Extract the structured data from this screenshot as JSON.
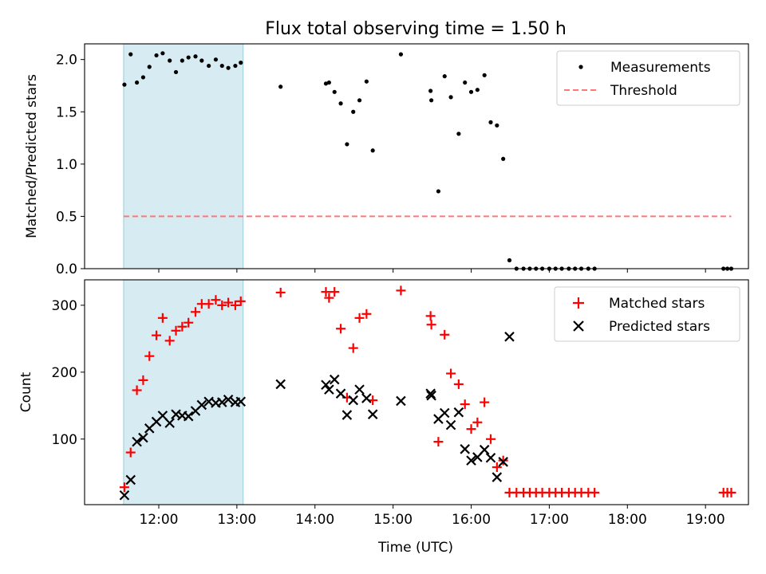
{
  "title": "Flux total observing time = 1.50 h",
  "chart_data": [
    {
      "type": "scatter",
      "ylabel": "Matched/Predicted stars",
      "xlabel": "",
      "x_unit": "hours UTC",
      "xlim": [
        11.05,
        19.55
      ],
      "ylim": [
        0,
        2.15
      ],
      "yticks": [
        0.0,
        0.5,
        1.0,
        1.5,
        2.0
      ],
      "ytick_labels": [
        "0.0",
        "0.5",
        "1.0",
        "1.5",
        "2.0"
      ],
      "shaded_span": {
        "x": [
          11.55,
          13.08
        ],
        "color": "#add8e6"
      },
      "legend_position": "upper-right",
      "series": [
        {
          "name": "Measurements",
          "marker": "dot",
          "color": "#000000",
          "points": [
            [
              11.56,
              1.76
            ],
            [
              11.64,
              2.05
            ],
            [
              11.72,
              1.78
            ],
            [
              11.8,
              1.83
            ],
            [
              11.88,
              1.93
            ],
            [
              11.97,
              2.04
            ],
            [
              12.05,
              2.06
            ],
            [
              12.14,
              1.99
            ],
            [
              12.22,
              1.88
            ],
            [
              12.3,
              1.99
            ],
            [
              12.38,
              2.02
            ],
            [
              12.47,
              2.03
            ],
            [
              12.55,
              1.99
            ],
            [
              12.64,
              1.94
            ],
            [
              12.73,
              2.0
            ],
            [
              12.81,
              1.94
            ],
            [
              12.89,
              1.92
            ],
            [
              12.98,
              1.94
            ],
            [
              13.05,
              1.97
            ],
            [
              13.56,
              1.74
            ],
            [
              14.14,
              1.77
            ],
            [
              14.18,
              1.78
            ],
            [
              14.25,
              1.69
            ],
            [
              14.33,
              1.58
            ],
            [
              14.41,
              1.19
            ],
            [
              14.49,
              1.5
            ],
            [
              14.57,
              1.61
            ],
            [
              14.66,
              1.79
            ],
            [
              14.74,
              1.13
            ],
            [
              15.1,
              2.05
            ],
            [
              15.48,
              1.7
            ],
            [
              15.49,
              1.61
            ],
            [
              15.58,
              0.74
            ],
            [
              15.66,
              1.84
            ],
            [
              15.74,
              1.64
            ],
            [
              15.84,
              1.29
            ],
            [
              15.92,
              1.78
            ],
            [
              16.0,
              1.69
            ],
            [
              16.08,
              1.71
            ],
            [
              16.17,
              1.85
            ],
            [
              16.25,
              1.4
            ],
            [
              16.33,
              1.37
            ],
            [
              16.41,
              1.05
            ],
            [
              16.49,
              0.08
            ],
            [
              16.58,
              0.0
            ],
            [
              16.67,
              0.0
            ],
            [
              16.75,
              0.0
            ],
            [
              16.83,
              0.0
            ],
            [
              16.91,
              0.0
            ],
            [
              17.0,
              0.0
            ],
            [
              17.08,
              0.0
            ],
            [
              17.16,
              0.0
            ],
            [
              17.25,
              0.0
            ],
            [
              17.33,
              0.0
            ],
            [
              17.41,
              0.0
            ],
            [
              17.5,
              0.0
            ],
            [
              17.58,
              0.0
            ],
            [
              19.23,
              0.0
            ],
            [
              19.28,
              0.0
            ],
            [
              19.33,
              0.0
            ]
          ]
        },
        {
          "name": "Threshold",
          "marker": "dashed-line",
          "color": "#ff7777",
          "points": [
            [
              11.55,
              0.5
            ],
            [
              19.33,
              0.5
            ]
          ]
        }
      ]
    },
    {
      "type": "scatter",
      "ylabel": "Count",
      "xlabel": "Time (UTC)",
      "x_unit": "hours UTC",
      "xlim": [
        11.05,
        19.55
      ],
      "ylim": [
        2,
        338
      ],
      "yticks": [
        100,
        200,
        300
      ],
      "ytick_labels": [
        "100",
        "200",
        "300"
      ],
      "xticks": [
        12,
        13,
        14,
        15,
        16,
        17,
        18,
        19
      ],
      "xtick_labels": [
        "12:00",
        "13:00",
        "14:00",
        "15:00",
        "16:00",
        "17:00",
        "18:00",
        "19:00"
      ],
      "shaded_span": {
        "x": [
          11.55,
          13.08
        ],
        "color": "#add8e6"
      },
      "legend_position": "upper-right",
      "series": [
        {
          "name": "Matched stars",
          "marker": "plus",
          "color": "#ff0000",
          "points": [
            [
              11.56,
              28
            ],
            [
              11.64,
              80
            ],
            [
              11.72,
              173
            ],
            [
              11.8,
              188
            ],
            [
              11.88,
              224
            ],
            [
              11.97,
              255
            ],
            [
              12.05,
              281
            ],
            [
              12.14,
              247
            ],
            [
              12.22,
              262
            ],
            [
              12.3,
              268
            ],
            [
              12.38,
              274
            ],
            [
              12.47,
              290
            ],
            [
              12.55,
              302
            ],
            [
              12.64,
              302
            ],
            [
              12.73,
              308
            ],
            [
              12.81,
              300
            ],
            [
              12.89,
              304
            ],
            [
              12.98,
              300
            ],
            [
              13.05,
              306
            ],
            [
              13.56,
              319
            ],
            [
              14.14,
              320
            ],
            [
              14.18,
              311
            ],
            [
              14.25,
              320
            ],
            [
              14.33,
              265
            ],
            [
              14.41,
              162
            ],
            [
              14.49,
              236
            ],
            [
              14.57,
              281
            ],
            [
              14.66,
              287
            ],
            [
              14.74,
              158
            ],
            [
              15.1,
              322
            ],
            [
              15.48,
              284
            ],
            [
              15.49,
              271
            ],
            [
              15.58,
              96
            ],
            [
              15.66,
              256
            ],
            [
              15.74,
              198
            ],
            [
              15.84,
              182
            ],
            [
              15.92,
              152
            ],
            [
              16.0,
              115
            ],
            [
              16.08,
              125
            ],
            [
              16.17,
              155
            ],
            [
              16.25,
              100
            ],
            [
              16.33,
              58
            ],
            [
              16.41,
              68
            ],
            [
              16.49,
              20
            ],
            [
              16.58,
              20
            ],
            [
              16.67,
              20
            ],
            [
              16.75,
              20
            ],
            [
              16.83,
              20
            ],
            [
              16.91,
              20
            ],
            [
              17.0,
              20
            ],
            [
              17.08,
              20
            ],
            [
              17.16,
              20
            ],
            [
              17.25,
              20
            ],
            [
              17.33,
              20
            ],
            [
              17.41,
              20
            ],
            [
              17.5,
              20
            ],
            [
              17.58,
              20
            ],
            [
              19.23,
              20
            ],
            [
              19.28,
              20
            ],
            [
              19.33,
              20
            ]
          ]
        },
        {
          "name": "Predicted stars",
          "marker": "x",
          "color": "#000000",
          "points": [
            [
              11.56,
              16
            ],
            [
              11.64,
              39
            ],
            [
              11.72,
              96
            ],
            [
              11.8,
              102
            ],
            [
              11.88,
              116
            ],
            [
              11.97,
              126
            ],
            [
              12.05,
              135
            ],
            [
              12.14,
              124
            ],
            [
              12.22,
              137
            ],
            [
              12.3,
              135
            ],
            [
              12.38,
              134
            ],
            [
              12.47,
              142
            ],
            [
              12.55,
              151
            ],
            [
              12.64,
              156
            ],
            [
              12.73,
              154
            ],
            [
              12.81,
              155
            ],
            [
              12.89,
              159
            ],
            [
              12.98,
              155
            ],
            [
              13.05,
              156
            ],
            [
              13.56,
              182
            ],
            [
              14.14,
              181
            ],
            [
              14.18,
              174
            ],
            [
              14.25,
              189
            ],
            [
              14.33,
              168
            ],
            [
              14.41,
              136
            ],
            [
              14.49,
              158
            ],
            [
              14.57,
              174
            ],
            [
              14.66,
              161
            ],
            [
              14.74,
              137
            ],
            [
              15.1,
              157
            ],
            [
              15.48,
              168
            ],
            [
              15.49,
              165
            ],
            [
              15.58,
              130
            ],
            [
              15.66,
              139
            ],
            [
              15.74,
              121
            ],
            [
              15.84,
              140
            ],
            [
              15.92,
              85
            ],
            [
              16.0,
              68
            ],
            [
              16.08,
              73
            ],
            [
              16.17,
              84
            ],
            [
              16.25,
              72
            ],
            [
              16.33,
              43
            ],
            [
              16.41,
              66
            ],
            [
              16.49,
              253
            ]
          ]
        }
      ]
    }
  ]
}
